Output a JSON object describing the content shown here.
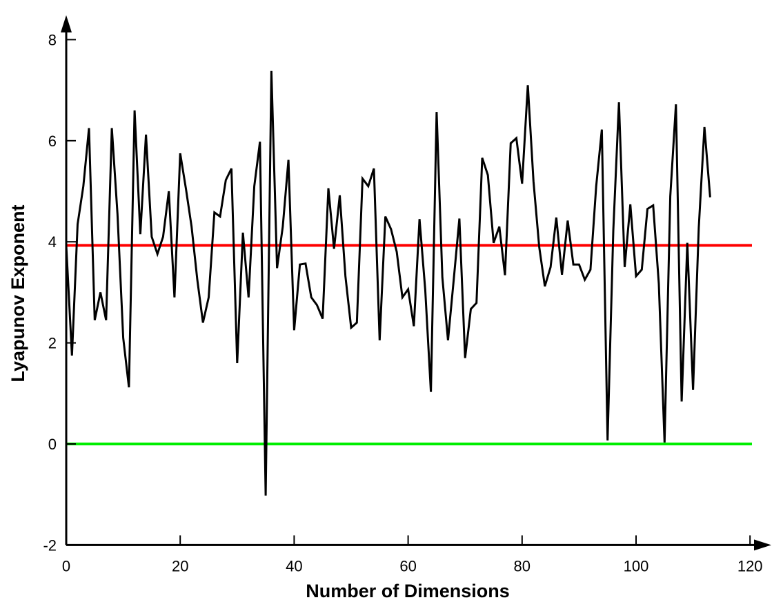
{
  "chart_data": {
    "type": "line",
    "xlabel": "Number of Dimensions",
    "ylabel": "Lyapunov Exponent",
    "xlim": [
      0,
      120
    ],
    "ylim": [
      -2,
      8
    ],
    "xticks": [
      0,
      20,
      40,
      60,
      80,
      100,
      120
    ],
    "yticks": [
      -2,
      0,
      2,
      4,
      6,
      8
    ],
    "grid": false,
    "reference_lines": [
      {
        "y": 3.93,
        "color": "#ff0000"
      },
      {
        "y": 0,
        "color": "#00ee00"
      }
    ],
    "series": [
      {
        "color": "#000000",
        "x": [
          0,
          1,
          2,
          3,
          4,
          5,
          6,
          7,
          8,
          9,
          10,
          11,
          12,
          13,
          14,
          15,
          16,
          17,
          18,
          19,
          20,
          21,
          22,
          23,
          24,
          25,
          26,
          27,
          28,
          29,
          30,
          31,
          32,
          33,
          34,
          35,
          36,
          37,
          38,
          39,
          40,
          41,
          42,
          43,
          44,
          45,
          46,
          47,
          48,
          49,
          50,
          51,
          52,
          53,
          54,
          55,
          56,
          57,
          58,
          59,
          60,
          61,
          62,
          63,
          64,
          65,
          66,
          67,
          68,
          69,
          70,
          71,
          72,
          73,
          74,
          75,
          76,
          77,
          78,
          79,
          80,
          81,
          82,
          83,
          84,
          85,
          86,
          87,
          88,
          89,
          90,
          91,
          92,
          93,
          94,
          95,
          96,
          97,
          98,
          99,
          100,
          101,
          102,
          103,
          104,
          105,
          106,
          107,
          108,
          109,
          110,
          111,
          112,
          113
        ],
        "y": [
          3.93,
          1.75,
          4.35,
          5.1,
          6.25,
          2.45,
          3.0,
          2.45,
          6.25,
          4.55,
          2.1,
          1.12,
          6.6,
          4.15,
          6.12,
          4.1,
          3.76,
          4.1,
          5.0,
          2.9,
          5.75,
          5.05,
          4.3,
          3.25,
          2.4,
          2.9,
          4.58,
          4.5,
          5.22,
          5.45,
          1.6,
          4.18,
          2.9,
          5.1,
          5.98,
          -1.02,
          7.38,
          3.48,
          4.3,
          5.62,
          2.25,
          3.55,
          3.57,
          2.9,
          2.75,
          2.48,
          5.06,
          3.86,
          4.92,
          3.32,
          2.3,
          2.4,
          5.25,
          5.1,
          5.45,
          2.05,
          4.5,
          4.25,
          3.8,
          2.9,
          3.06,
          2.33,
          4.45,
          3.05,
          1.03,
          6.57,
          3.3,
          2.05,
          3.25,
          4.46,
          1.7,
          2.67,
          2.79,
          5.66,
          5.32,
          3.98,
          4.3,
          3.34,
          5.95,
          6.05,
          5.15,
          7.1,
          5.2,
          3.9,
          3.12,
          3.5,
          4.48,
          3.35,
          4.42,
          3.55,
          3.55,
          3.25,
          3.45,
          5.1,
          6.22,
          0.07,
          4.22,
          6.76,
          3.5,
          4.74,
          3.32,
          3.45,
          4.65,
          4.72,
          3.17,
          0.03,
          4.9,
          6.72,
          0.84,
          3.98,
          1.07,
          4.28,
          6.27,
          4.88
        ]
      }
    ]
  }
}
